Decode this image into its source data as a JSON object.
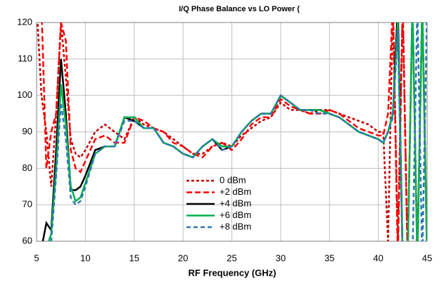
{
  "chart_data": {
    "type": "line",
    "title": "I/Q Phase Balance vs LO Power (",
    "xlabel": "RF Frequency (GHz)",
    "x": [
      5,
      5.5,
      6,
      6.5,
      7,
      7.5,
      8,
      8.5,
      9,
      9.5,
      10,
      11,
      12,
      13,
      14,
      15,
      16,
      17,
      18,
      19,
      20,
      21,
      22,
      23,
      24,
      25,
      26,
      27,
      28,
      29,
      30,
      31,
      32,
      33,
      34,
      35,
      36,
      37,
      38,
      39,
      40,
      40.5,
      41,
      41.5,
      42,
      42.5,
      43,
      43.5,
      44,
      44.5,
      45
    ],
    "xlim": [
      5,
      45
    ],
    "xticks": [
      5,
      10,
      15,
      20,
      25,
      30,
      35,
      40,
      45
    ],
    "ylim": [
      60,
      120
    ],
    "yticks": [
      60,
      70,
      80,
      90,
      100,
      110,
      120
    ],
    "grid": true,
    "legend": "center",
    "series": [
      {
        "name": "0 dBm",
        "color": "#c00000",
        "dash": "4,3",
        "values": [
          125,
          100,
          90,
          75,
          95,
          120,
          105,
          88,
          84,
          83,
          85,
          90,
          92,
          90,
          88,
          94,
          92,
          91,
          90,
          88,
          86,
          84,
          84,
          86,
          87,
          86,
          89,
          91,
          93,
          94,
          98,
          96,
          96,
          95,
          96,
          96,
          95,
          94,
          93,
          92,
          90,
          90,
          60,
          125,
          60,
          125,
          55,
          125,
          55,
          125,
          55
        ]
      },
      {
        "name": "+2 dBm",
        "color": "#ff0000",
        "dash": "8,4",
        "values": [
          130,
          125,
          80,
          90,
          95,
          120,
          115,
          85,
          80,
          79,
          82,
          88,
          89,
          87,
          87,
          94,
          93,
          91,
          90,
          87,
          86,
          84,
          83,
          86,
          87,
          85,
          88,
          92,
          94,
          94,
          99,
          97,
          96,
          95,
          95,
          96,
          95,
          93,
          91,
          90,
          89,
          89,
          95,
          125,
          55,
          125,
          55,
          125,
          55,
          125,
          55
        ]
      },
      {
        "name": "+4 dBm",
        "color": "#000000",
        "dash": "none",
        "values": [
          56,
          58,
          65,
          63,
          85,
          110,
          95,
          74,
          74,
          75,
          78,
          85,
          86,
          86,
          94,
          93,
          91,
          91,
          87,
          86,
          84,
          83,
          86,
          88,
          85,
          86,
          90,
          93,
          95,
          95,
          100,
          98,
          96,
          96,
          96,
          95,
          94,
          92,
          90,
          89,
          88,
          87,
          90,
          95,
          125,
          55,
          55,
          55,
          55,
          55,
          55
        ]
      },
      {
        "name": "+6 dBm",
        "color": "#00b050",
        "dash": "none",
        "values": [
          55,
          55,
          58,
          62,
          80,
          103,
          92,
          75,
          71,
          72,
          76,
          84,
          86,
          86,
          94,
          94,
          91,
          91,
          87,
          86,
          84,
          83,
          86,
          88,
          86,
          86,
          90,
          93,
          95,
          95,
          100,
          98,
          96,
          96,
          96,
          95,
          94,
          92,
          90,
          89,
          88,
          87,
          90,
          95,
          120,
          55,
          55,
          125,
          55,
          125,
          55
        ]
      },
      {
        "name": "+8 dBm",
        "color": "#2e75b6",
        "dash": "6,4",
        "values": [
          55,
          55,
          55,
          60,
          78,
          98,
          88,
          72,
          70,
          71,
          75,
          84,
          86,
          86,
          93,
          93,
          91,
          91,
          87,
          86,
          84,
          83,
          86,
          88,
          85,
          86,
          90,
          93,
          95,
          95,
          100,
          98,
          96,
          96,
          95,
          95,
          94,
          92,
          90,
          89,
          88,
          87,
          90,
          94,
          118,
          55,
          55,
          55,
          125,
          55,
          125
        ]
      }
    ]
  }
}
